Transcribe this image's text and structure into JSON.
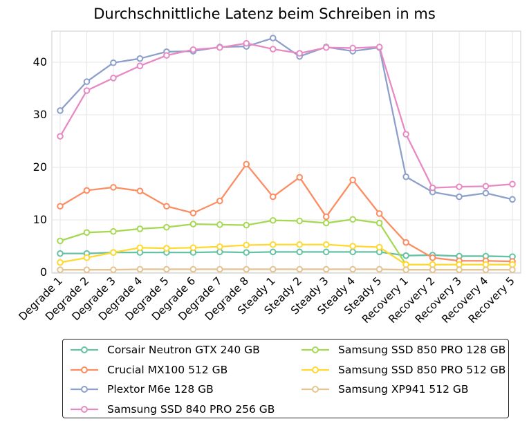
{
  "chart_data": {
    "type": "line",
    "title": "Durchschnittliche Latenz beim Schreiben in ms",
    "xlabel": "",
    "ylabel": "",
    "categories": [
      "Degrade 1",
      "Degrade 2",
      "Degrade 3",
      "Degrade 4",
      "Degrade 5",
      "Degrade 6",
      "Degrade 7",
      "Degrade 8",
      "Steady 1",
      "Steady 2",
      "Steady 3",
      "Steady 4",
      "Steady 5",
      "Recovery 1",
      "Recovery 2",
      "Recovery 3",
      "Recovery 4",
      "Recovery 5"
    ],
    "ylim": [
      0,
      45
    ],
    "yticks": [
      0,
      10,
      20,
      30,
      40
    ],
    "grid": true,
    "legend_position": "bottom",
    "series": [
      {
        "name": "Corsair Neutron GTX 240 GB",
        "color": "#66c2a5",
        "values": [
          3.6,
          3.6,
          3.8,
          3.8,
          3.8,
          3.8,
          3.9,
          3.8,
          3.9,
          3.9,
          3.9,
          3.9,
          3.9,
          3.2,
          3.3,
          3.1,
          3.1,
          3.0
        ]
      },
      {
        "name": "Crucial MX100 512 GB",
        "color": "#fc8d62",
        "values": [
          12.6,
          15.6,
          16.2,
          15.5,
          12.6,
          11.3,
          13.6,
          20.6,
          14.4,
          18.1,
          10.6,
          17.6,
          11.2,
          5.7,
          2.8,
          2.2,
          2.2,
          2.1
        ]
      },
      {
        "name": "Plextor M6e 128 GB",
        "color": "#8da0cb",
        "values": [
          30.8,
          36.3,
          39.9,
          40.7,
          42.0,
          42.1,
          42.9,
          43.0,
          44.6,
          41.1,
          42.9,
          42.1,
          42.8,
          18.2,
          15.3,
          14.4,
          15.1,
          13.9
        ]
      },
      {
        "name": "Samsung SSD 840 PRO 256 GB",
        "color": "#e78ac3",
        "values": [
          25.9,
          34.6,
          37.0,
          39.3,
          41.3,
          42.4,
          42.8,
          43.6,
          42.5,
          41.7,
          42.8,
          42.7,
          42.9,
          26.3,
          16.1,
          16.3,
          16.4,
          16.8
        ]
      },
      {
        "name": "Samsung SSD 850 PRO 128 GB",
        "color": "#a6d854",
        "values": [
          6.0,
          7.6,
          7.8,
          8.3,
          8.6,
          9.2,
          9.1,
          9.0,
          9.9,
          9.8,
          9.4,
          10.1,
          9.4,
          1.5,
          1.5,
          1.5,
          1.5,
          1.5
        ]
      },
      {
        "name": "Samsung SSD 850 PRO 512 GB",
        "color": "#ffd92f",
        "values": [
          1.9,
          2.8,
          3.8,
          4.7,
          4.6,
          4.7,
          4.9,
          5.2,
          5.3,
          5.3,
          5.3,
          5.0,
          4.8,
          1.5,
          1.5,
          1.5,
          1.5,
          1.5
        ]
      },
      {
        "name": "Samsung XP941 512 GB",
        "color": "#e5c494",
        "values": [
          0.5,
          0.5,
          0.5,
          0.6,
          0.6,
          0.6,
          0.6,
          0.6,
          0.6,
          0.6,
          0.6,
          0.6,
          0.6,
          0.5,
          0.5,
          0.5,
          0.5,
          0.5
        ]
      }
    ]
  }
}
